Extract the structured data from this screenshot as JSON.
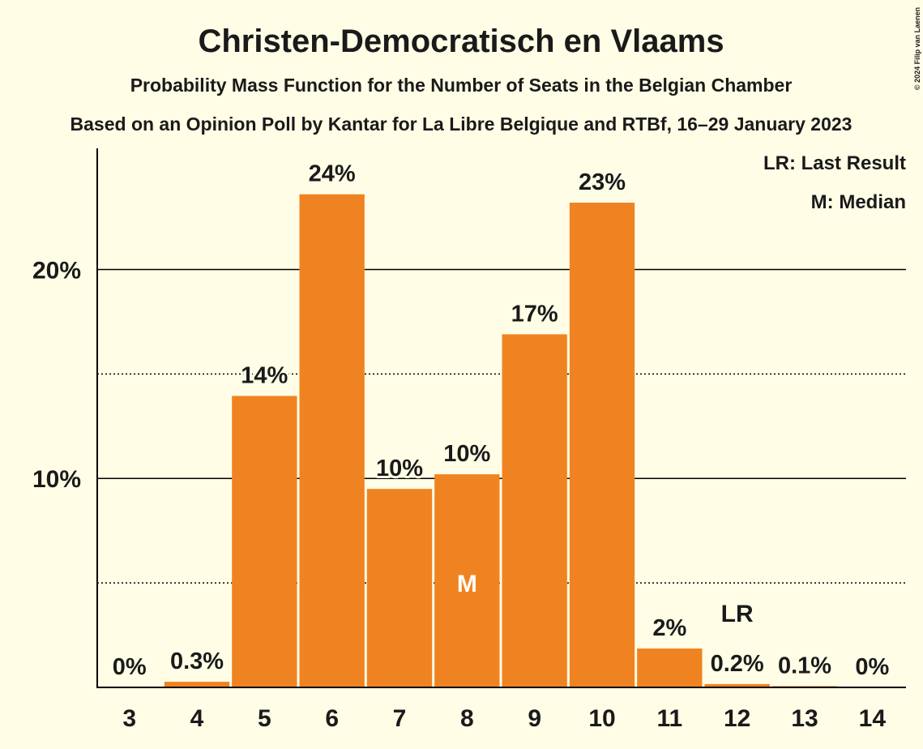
{
  "chart_data": {
    "type": "bar",
    "title": "Christen-Democratisch en Vlaams",
    "subtitle": "Probability Mass Function for the Number of Seats in the Belgian Chamber",
    "subtitle2": "Based on an Opinion Poll by Kantar for La Libre Belgique and RTBf, 16–29 January 2023",
    "copyright": "© 2024 Filip van Laenen",
    "categories": [
      "3",
      "4",
      "5",
      "6",
      "7",
      "8",
      "9",
      "10",
      "11",
      "12",
      "13",
      "14"
    ],
    "values": [
      0,
      0.27,
      13.95,
      23.6,
      9.5,
      10.2,
      16.9,
      23.2,
      1.86,
      0.16,
      0.06,
      0
    ],
    "value_labels": [
      "0%",
      "0.3%",
      "14%",
      "24%",
      "10%",
      "10%",
      "17%",
      "23%",
      "2%",
      "0.2%",
      "0.1%",
      "0%"
    ],
    "color": "#f08321",
    "ylim": [
      0,
      25.8
    ],
    "yticks": [
      {
        "value": 10,
        "label": "10%"
      },
      {
        "value": 20,
        "label": "20%"
      }
    ],
    "minor_yticks": [
      5,
      15
    ],
    "grid": true,
    "legend": [
      "LR: Last Result",
      "M: Median"
    ],
    "annotations": [
      {
        "text": "M",
        "category": "8"
      },
      {
        "text": "LR",
        "category": "12"
      }
    ]
  }
}
